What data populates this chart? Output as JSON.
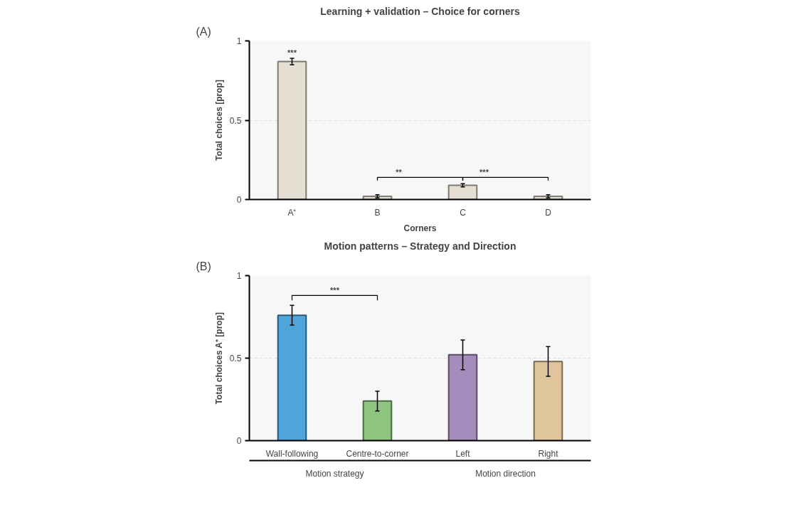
{
  "chart_data": [
    {
      "type": "bar",
      "title": "Learning + validation – Choice for corners",
      "xlabel": "Corners",
      "ylabel": "Total choices [prop]",
      "categories": [
        "A⁺",
        "B",
        "C",
        "D"
      ],
      "values": [
        0.87,
        0.02,
        0.09,
        0.02
      ],
      "errors": [
        0.02,
        0.01,
        0.01,
        0.01
      ],
      "colors": [
        "#e5ded2",
        "#e5ded2",
        "#e5ded2",
        "#e5ded2"
      ],
      "ylim": [
        0,
        1
      ],
      "yticks": [
        0,
        0.5,
        1
      ],
      "grid": "y",
      "annotations": [
        "(A)",
        {
          "text": "***",
          "x": "A⁺",
          "y": 0.9
        },
        "**",
        "***"
      ]
    },
    {
      "type": "bar",
      "title": "Motion patterns – Strategy and Direction",
      "ylabel": "Total choices A⁺ [prop]",
      "categories": [
        "Wall-following",
        "Centre-to-corner",
        "Left",
        "Right"
      ],
      "values": [
        0.76,
        0.24,
        0.52,
        0.48
      ],
      "errors": [
        0.06,
        0.06,
        0.09,
        0.09
      ],
      "colors": [
        "#4fa5da",
        "#8dc47f",
        "#a48cbc",
        "#dfc49c"
      ],
      "ylim": [
        0,
        1
      ],
      "yticks": [
        0,
        0.5,
        1
      ],
      "grid": "y",
      "annotations": [
        "(B)",
        "***",
        "Motion strategy",
        "Motion direction"
      ]
    }
  ]
}
